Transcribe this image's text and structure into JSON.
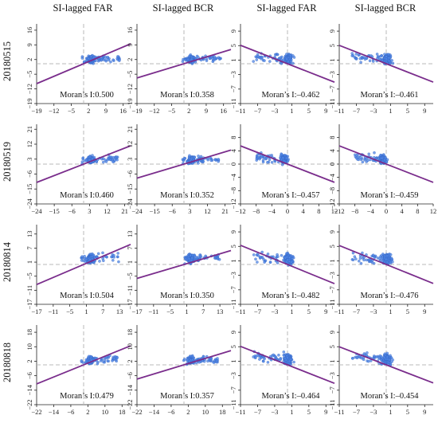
{
  "column_headers": [
    "SI-lagged FAR",
    "SI-lagged BCR",
    "SI-lagged FAR",
    "SI-lagged BCR"
  ],
  "row_labels": [
    "20180515",
    "20180519",
    "20180814",
    "20180818"
  ],
  "colors": {
    "points": "#4f86e6",
    "point_edge": "#2f5fbf",
    "regression_line": "#7a2d8c",
    "reference_lines": "#b8b8b8"
  },
  "chart_data": [
    {
      "type": "scatter",
      "row": 0,
      "col": 0,
      "x_ticks": [
        -19,
        -12,
        -5,
        2,
        9,
        16
      ],
      "y_ticks": [
        16,
        9,
        2,
        -5,
        -12,
        -19
      ],
      "xlim": [
        -19,
        19
      ],
      "ylim": [
        -19,
        19
      ],
      "slope": 0.5,
      "annotation": "Moran’s I:0.500",
      "cloud": {
        "x": [
          -1,
          15
        ],
        "y": [
          -1,
          5
        ]
      }
    },
    {
      "type": "scatter",
      "row": 0,
      "col": 1,
      "x_ticks": [
        -19,
        -12,
        -5,
        2,
        9,
        16
      ],
      "y_ticks": [
        16,
        9,
        2,
        -5,
        -12,
        -19
      ],
      "xlim": [
        -19,
        19
      ],
      "ylim": [
        -19,
        19
      ],
      "slope": 0.358,
      "annotation": "Moran’s I:0.358",
      "cloud": {
        "x": [
          -1,
          15
        ],
        "y": [
          -1,
          5
        ]
      }
    },
    {
      "type": "scatter",
      "row": 0,
      "col": 2,
      "x_ticks": [
        -11,
        -7,
        -3,
        1,
        5,
        9
      ],
      "y_ticks": [
        9,
        5,
        1,
        -3,
        -7,
        -11
      ],
      "xlim": [
        -11,
        11
      ],
      "ylim": [
        -11,
        11
      ],
      "slope": -0.462,
      "annotation": "Moran’s I:–0.462",
      "cloud": {
        "x": [
          -8,
          1.6
        ],
        "y": [
          -1,
          3.5
        ]
      }
    },
    {
      "type": "scatter",
      "row": 0,
      "col": 3,
      "x_ticks": [
        -11,
        -7,
        -3,
        1,
        5,
        9
      ],
      "y_ticks": [
        9,
        5,
        1,
        -3,
        -7,
        -11
      ],
      "xlim": [
        -11,
        11
      ],
      "ylim": [
        -11,
        11
      ],
      "slope": -0.461,
      "annotation": "Moran’s I:–0.461",
      "cloud": {
        "x": [
          -8,
          1.6
        ],
        "y": [
          -1,
          3.5
        ]
      }
    },
    {
      "type": "scatter",
      "row": 1,
      "col": 0,
      "x_ticks": [
        -24,
        -15,
        -6,
        3,
        12,
        21
      ],
      "y_ticks": [
        21,
        12,
        3,
        -6,
        -15,
        -24
      ],
      "xlim": [
        -24,
        24
      ],
      "ylim": [
        -24,
        24
      ],
      "slope": 0.46,
      "annotation": "Moran’s I:0.460",
      "cloud": {
        "x": [
          -1,
          18
        ],
        "y": [
          -1,
          6
        ]
      }
    },
    {
      "type": "scatter",
      "row": 1,
      "col": 1,
      "x_ticks": [
        -24,
        -15,
        -6,
        3,
        12,
        21
      ],
      "y_ticks": [
        21,
        12,
        3,
        -6,
        -15,
        -24
      ],
      "xlim": [
        -24,
        24
      ],
      "ylim": [
        -24,
        24
      ],
      "slope": 0.352,
      "annotation": "Moran’s I:0.352",
      "cloud": {
        "x": [
          -1,
          18
        ],
        "y": [
          -1,
          6
        ]
      }
    },
    {
      "type": "scatter",
      "row": 1,
      "col": 2,
      "x_ticks": [
        -12,
        -8,
        -4,
        0,
        4,
        8,
        12
      ],
      "y_ticks": [
        8,
        4,
        0,
        -4,
        -8,
        -12
      ],
      "xlim": [
        -12,
        12
      ],
      "ylim": [
        -12,
        12
      ],
      "slope": -0.457,
      "annotation": "Moran’s I:–0.457",
      "cloud": {
        "x": [
          -8,
          0.3
        ],
        "y": [
          -1,
          4
        ]
      }
    },
    {
      "type": "scatter",
      "row": 1,
      "col": 3,
      "x_ticks": [
        -12,
        -8,
        -4,
        0,
        4,
        8,
        12
      ],
      "y_ticks": [
        8,
        4,
        0,
        -4,
        -8,
        -12
      ],
      "xlim": [
        -12,
        12
      ],
      "ylim": [
        -12,
        12
      ],
      "slope": -0.459,
      "annotation": "Moran’s I:–0.459",
      "cloud": {
        "x": [
          -8,
          0.3
        ],
        "y": [
          -1,
          4
        ]
      }
    },
    {
      "type": "scatter",
      "row": 2,
      "col": 0,
      "x_ticks": [
        -17,
        -11,
        -5,
        1,
        7,
        13
      ],
      "y_ticks": [
        13,
        7,
        1,
        -5,
        -11,
        -17
      ],
      "xlim": [
        -17,
        17
      ],
      "ylim": [
        -17,
        17
      ],
      "slope": 0.504,
      "annotation": "Moran’s I:0.504",
      "cloud": {
        "x": [
          -1,
          13
        ],
        "y": [
          -1,
          6
        ]
      }
    },
    {
      "type": "scatter",
      "row": 2,
      "col": 1,
      "x_ticks": [
        -17,
        -11,
        -5,
        1,
        7,
        13
      ],
      "y_ticks": [
        13,
        7,
        1,
        -5,
        -11,
        -17
      ],
      "xlim": [
        -17,
        17
      ],
      "ylim": [
        -17,
        17
      ],
      "slope": 0.35,
      "annotation": "Moran’s I:0.350",
      "cloud": {
        "x": [
          -1,
          13
        ],
        "y": [
          -1,
          6
        ]
      }
    },
    {
      "type": "scatter",
      "row": 2,
      "col": 2,
      "x_ticks": [
        -11,
        -7,
        -3,
        1,
        5,
        9
      ],
      "y_ticks": [
        9,
        5,
        1,
        -3,
        -7,
        -11
      ],
      "xlim": [
        -11,
        11
      ],
      "ylim": [
        -11,
        11
      ],
      "slope": -0.482,
      "annotation": "Moran’s I:–0.482",
      "cloud": {
        "x": [
          -8,
          1.6
        ],
        "y": [
          -1,
          4
        ]
      }
    },
    {
      "type": "scatter",
      "row": 2,
      "col": 3,
      "x_ticks": [
        -11,
        -7,
        -3,
        1,
        5,
        9
      ],
      "y_ticks": [
        9,
        5,
        1,
        -3,
        -7,
        -11
      ],
      "xlim": [
        -11,
        11
      ],
      "ylim": [
        -11,
        11
      ],
      "slope": -0.476,
      "annotation": "Moran’s I:–0.476",
      "cloud": {
        "x": [
          -8,
          1.6
        ],
        "y": [
          -1,
          4
        ]
      }
    },
    {
      "type": "scatter",
      "row": 3,
      "col": 0,
      "x_ticks": [
        -22,
        -14,
        -6,
        2,
        10,
        18
      ],
      "y_ticks": [
        18,
        10,
        2,
        -6,
        -14,
        -22
      ],
      "xlim": [
        -22,
        22
      ],
      "ylim": [
        -22,
        22
      ],
      "slope": 0.479,
      "annotation": "Moran’s I:0.479",
      "cloud": {
        "x": [
          -1,
          16
        ],
        "y": [
          -1,
          6
        ]
      }
    },
    {
      "type": "scatter",
      "row": 3,
      "col": 1,
      "x_ticks": [
        -22,
        -14,
        -6,
        2,
        10,
        18
      ],
      "y_ticks": [
        18,
        10,
        2,
        -6,
        -14,
        -22
      ],
      "xlim": [
        -22,
        22
      ],
      "ylim": [
        -22,
        22
      ],
      "slope": 0.357,
      "annotation": "Moran’s I:0.357",
      "cloud": {
        "x": [
          -1,
          16
        ],
        "y": [
          -1,
          6
        ]
      }
    },
    {
      "type": "scatter",
      "row": 3,
      "col": 2,
      "x_ticks": [
        -11,
        -7,
        -3,
        1,
        5,
        9
      ],
      "y_ticks": [
        9,
        5,
        1,
        -3,
        -7,
        -11
      ],
      "xlim": [
        -11,
        11
      ],
      "ylim": [
        -11,
        11
      ],
      "slope": -0.464,
      "annotation": "Moran’s I:–0.464",
      "cloud": {
        "x": [
          -8,
          1.6
        ],
        "y": [
          -1,
          4
        ]
      }
    },
    {
      "type": "scatter",
      "row": 3,
      "col": 3,
      "x_ticks": [
        -11,
        -7,
        -3,
        1,
        5,
        9
      ],
      "y_ticks": [
        9,
        5,
        1,
        -3,
        -7,
        -11
      ],
      "xlim": [
        -11,
        11
      ],
      "ylim": [
        -11,
        11
      ],
      "slope": -0.454,
      "annotation": "Moran’s I:–0.454",
      "cloud": {
        "x": [
          -8,
          1.6
        ],
        "y": [
          -1,
          4
        ]
      }
    }
  ]
}
